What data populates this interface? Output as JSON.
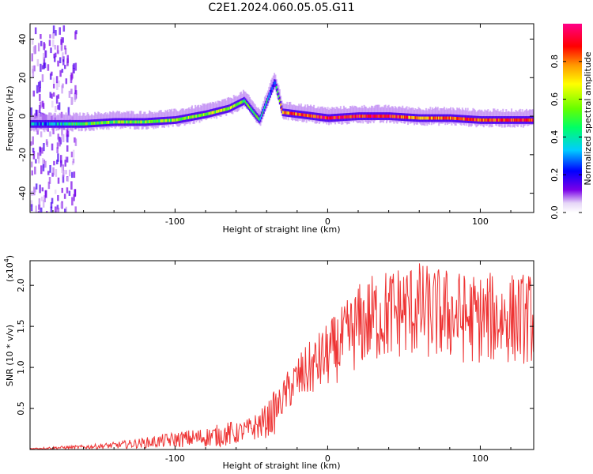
{
  "title": "C2E1.2024.060.05.05.G11",
  "chart_data": [
    {
      "type": "heatmap",
      "xlabel": "Height of straight line (km)",
      "ylabel": "Frequency (Hz)",
      "xlim": [
        -195,
        135
      ],
      "ylim": [
        -50,
        48
      ],
      "xticks": [
        -100,
        0,
        100
      ],
      "xtick_labels": [
        "-100",
        "0",
        "100"
      ],
      "yticks": [
        -40,
        -20,
        0,
        20,
        40
      ],
      "ytick_labels": [
        "-40",
        "-20",
        "0",
        "20",
        "40"
      ],
      "colorbar": {
        "label": "Normalized spectral amplitude",
        "range": [
          0,
          1
        ],
        "ticks": [
          0,
          0.2,
          0.4,
          0.6,
          0.8
        ],
        "tick_labels": [
          "0.0",
          "0.2",
          "0.4",
          "0.6",
          "0.8"
        ]
      },
      "ridge": [
        {
          "x": -185,
          "y": -4,
          "amp": 0.3
        },
        {
          "x": -160,
          "y": -4,
          "amp": 0.5
        },
        {
          "x": -140,
          "y": -3,
          "amp": 0.55
        },
        {
          "x": -120,
          "y": -3,
          "amp": 0.55
        },
        {
          "x": -100,
          "y": -2,
          "amp": 0.55
        },
        {
          "x": -80,
          "y": 1,
          "amp": 0.6
        },
        {
          "x": -65,
          "y": 4,
          "amp": 0.6
        },
        {
          "x": -55,
          "y": 8,
          "amp": 0.5
        },
        {
          "x": -45,
          "y": -2,
          "amp": 0.45
        },
        {
          "x": -35,
          "y": 18,
          "amp": 0.3
        },
        {
          "x": -30,
          "y": 2,
          "amp": 0.8
        },
        {
          "x": -20,
          "y": 1,
          "amp": 0.85
        },
        {
          "x": 0,
          "y": -1,
          "amp": 0.9
        },
        {
          "x": 20,
          "y": 0,
          "amp": 0.9
        },
        {
          "x": 40,
          "y": 0,
          "amp": 0.9
        },
        {
          "x": 60,
          "y": -1,
          "amp": 0.75
        },
        {
          "x": 80,
          "y": -1,
          "amp": 0.8
        },
        {
          "x": 100,
          "y": -2,
          "amp": 0.85
        },
        {
          "x": 120,
          "y": -2,
          "amp": 0.85
        },
        {
          "x": 135,
          "y": -2,
          "amp": 0.85
        }
      ]
    },
    {
      "type": "line",
      "xlabel": "Height of straight line (km)",
      "ylabel": "SNR (10 * v/v)",
      "yscale_label": "(x10",
      "yscale_exponent": "4",
      "xlim": [
        -195,
        135
      ],
      "ylim": [
        0,
        2.3
      ],
      "xticks": [
        -100,
        0,
        100
      ],
      "xtick_labels": [
        "-100",
        "0",
        "100"
      ],
      "yticks": [
        0.5,
        1.0,
        1.5,
        2.0
      ],
      "ytick_labels": [
        "0.5",
        "1.0",
        "1.5",
        "2.0"
      ],
      "series": [
        {
          "color": "#ee3333",
          "x": [
            -195,
            -180,
            -160,
            -140,
            -120,
            -100,
            -80,
            -60,
            -50,
            -40,
            -35,
            -30,
            -25,
            -20,
            -10,
            0,
            10,
            20,
            30,
            40,
            50,
            60,
            70,
            80,
            90,
            100,
            110,
            120,
            135
          ],
          "y": [
            0.01,
            0.02,
            0.03,
            0.05,
            0.08,
            0.12,
            0.15,
            0.2,
            0.25,
            0.35,
            0.45,
            0.6,
            0.75,
            0.85,
            1.0,
            1.15,
            1.3,
            1.5,
            1.6,
            1.65,
            1.7,
            1.7,
            1.65,
            1.65,
            1.6,
            1.6,
            1.6,
            1.6,
            1.6
          ]
        }
      ]
    }
  ]
}
